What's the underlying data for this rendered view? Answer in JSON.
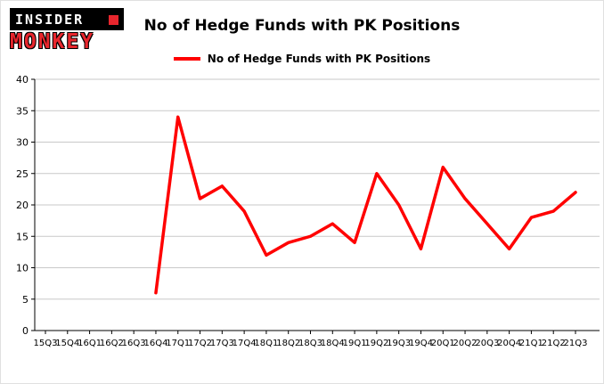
{
  "logo": {
    "line1": "INSIDER",
    "line2": "MONKEY"
  },
  "header": {
    "title": "No of Hedge Funds with PK Positions"
  },
  "legend": {
    "label": "No of Hedge Funds with PK Positions"
  },
  "chart_data": {
    "type": "line",
    "title": "No of Hedge Funds with PK Positions",
    "categories": [
      "15Q3",
      "15Q4",
      "16Q1",
      "16Q2",
      "16Q3",
      "16Q4",
      "17Q1",
      "17Q2",
      "17Q3",
      "17Q4",
      "18Q1",
      "18Q2",
      "18Q3",
      "18Q4",
      "19Q1",
      "19Q2",
      "19Q3",
      "19Q4",
      "20Q1",
      "20Q2",
      "20Q3",
      "20Q4",
      "21Q1",
      "21Q2",
      "21Q3"
    ],
    "series": [
      {
        "name": "No of Hedge Funds with PK Positions",
        "color": "#ff0000",
        "values": [
          null,
          null,
          null,
          null,
          null,
          6,
          34,
          21,
          23,
          19,
          12,
          14,
          15,
          17,
          14,
          25,
          20,
          13,
          26,
          21,
          17,
          13,
          18,
          19,
          22
        ]
      }
    ],
    "xlabel": "",
    "ylabel": "",
    "ylim": [
      0,
      40
    ],
    "ytick_interval": 5,
    "grid": true,
    "gridline_color": "#c9c9c9",
    "axis_color": "#000000",
    "background": "#ffffff",
    "legend_position": "top-center",
    "line_width": 3.5
  }
}
